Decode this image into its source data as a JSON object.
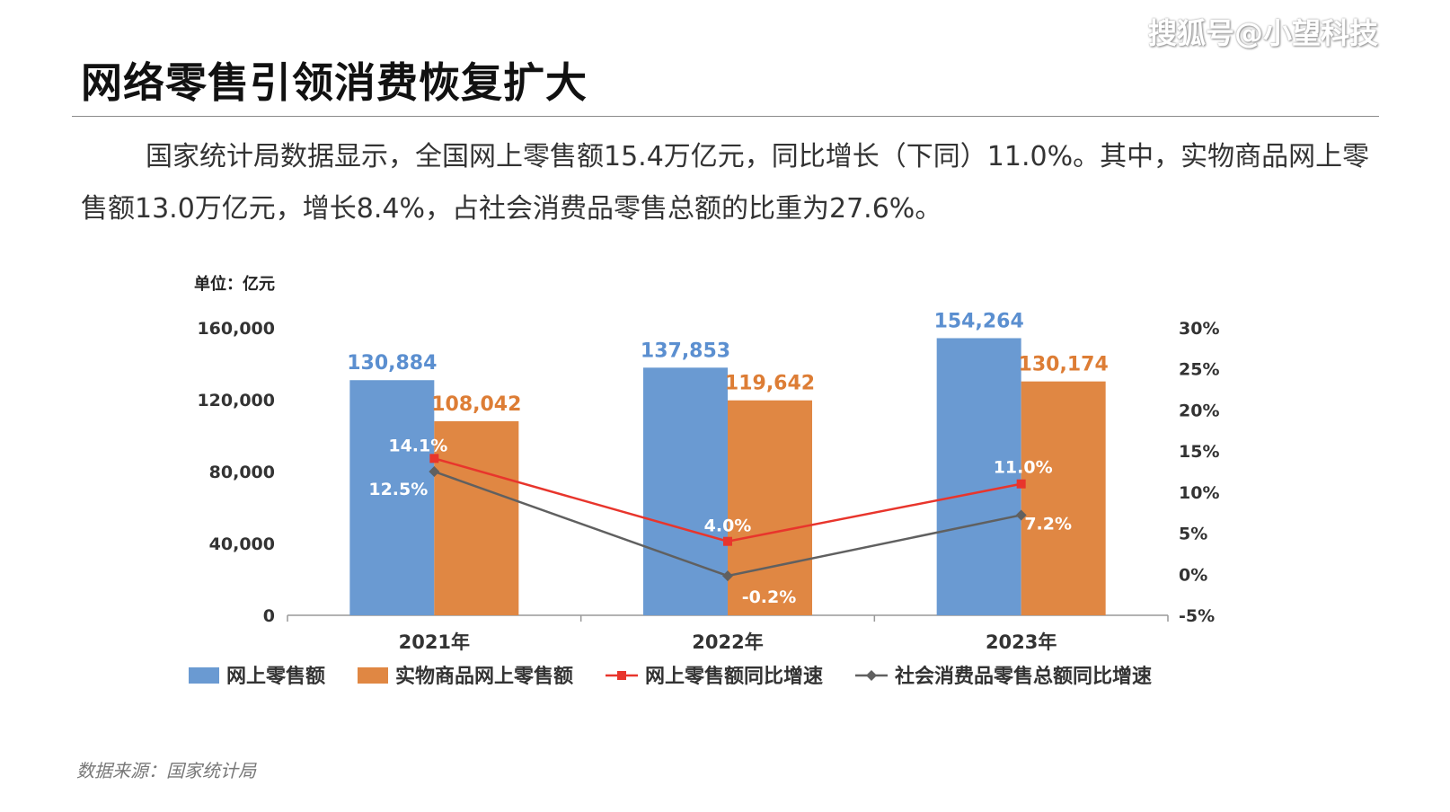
{
  "watermark": "搜狐号@小望科技",
  "page_title": "网络零售引领消费恢复扩大",
  "summary": "国家统计局数据显示，全国网上零售额15.4万亿元，同比增长（下同）11.0%。其中，实物商品网上零售额13.0万亿元，增长8.4%，占社会消费品零售总额的比重为27.6%。",
  "source": "数据来源：国家统计局",
  "chart_data": {
    "type": "bar",
    "unit_label": "单位：亿元",
    "categories": [
      "2021年",
      "2022年",
      "2023年"
    ],
    "left_axis": {
      "min": 0,
      "max": 160000,
      "ticks": [
        "0",
        "40,000",
        "80,000",
        "120,000",
        "160,000"
      ]
    },
    "right_axis": {
      "min": -5,
      "max": 30,
      "ticks": [
        "-5%",
        "0%",
        "5%",
        "10%",
        "15%",
        "20%",
        "25%",
        "30%"
      ]
    },
    "bar_series": [
      {
        "name": "网上零售额",
        "color": "#6a9ad2",
        "label_color": "#5b8fd0",
        "values": [
          130884,
          137853,
          154264
        ],
        "labels": [
          "130,884",
          "137,853",
          "154,264"
        ]
      },
      {
        "name": "实物商品网上零售额",
        "color": "#e08743",
        "label_color": "#dd7d35",
        "values": [
          108042,
          119642,
          130174
        ],
        "labels": [
          "108,042",
          "119,642",
          "130,174"
        ]
      }
    ],
    "line_series": [
      {
        "name": "网上零售额同比增速",
        "color": "#e8352c",
        "marker": "square",
        "values": [
          14.1,
          4.0,
          11.0
        ],
        "labels": [
          "14.1%",
          "4.0%",
          "11.0%"
        ]
      },
      {
        "name": "社会消费品零售总额同比增速",
        "color": "#606060",
        "marker": "diamond",
        "values": [
          12.5,
          -0.2,
          7.2
        ],
        "labels": [
          "12.5%",
          "-0.2%",
          "7.2%"
        ]
      }
    ],
    "legend_position": "bottom",
    "grid": false
  }
}
